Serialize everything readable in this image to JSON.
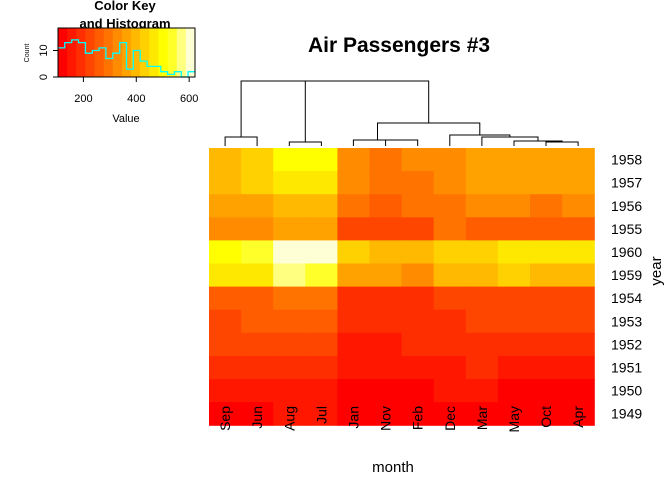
{
  "title": "Air Passengers #3",
  "key": {
    "title_line1": "Color Key",
    "title_line2": "and Histogram",
    "xlabel": "Value",
    "ylabel": "Count",
    "x_ticks": [
      "200",
      "400",
      "600"
    ],
    "y_ticks": [
      "0",
      "10"
    ],
    "value_range": [
      104,
      622
    ],
    "count_range": [
      0,
      18.5
    ],
    "palette": [
      "#FF0000",
      "#FF1700",
      "#FF2E00",
      "#FF4600",
      "#FF5D00",
      "#FF7400",
      "#FF8B00",
      "#FFA200",
      "#FFB900",
      "#FFD100",
      "#FFE800",
      "#FFFF00",
      "#FFFF2A",
      "#FFFF80",
      "#FFFFD5"
    ],
    "histogram_color": "#00FFFF"
  },
  "chart_data": {
    "type": "heatmap",
    "title": "Air Passengers #3",
    "xlabel": "month",
    "ylabel": "year",
    "columns": [
      "Sep",
      "Jun",
      "Aug",
      "Jul",
      "Jan",
      "Nov",
      "Feb",
      "Dec",
      "Mar",
      "May",
      "Oct",
      "Apr"
    ],
    "rows": [
      "1958",
      "1957",
      "1956",
      "1955",
      "1960",
      "1959",
      "1954",
      "1953",
      "1952",
      "1951",
      "1950",
      "1949"
    ],
    "row_dendrogram": false,
    "column_dendrogram": true,
    "values": [
      [
        404,
        422,
        505,
        491,
        340,
        310,
        318,
        337,
        362,
        363,
        359,
        348
      ],
      [
        404,
        422,
        467,
        465,
        315,
        305,
        301,
        336,
        356,
        355,
        347,
        348
      ],
      [
        355,
        374,
        405,
        413,
        284,
        271,
        277,
        306,
        317,
        318,
        306,
        313
      ],
      [
        312,
        315,
        347,
        364,
        242,
        237,
        233,
        278,
        267,
        270,
        274,
        269
      ],
      [
        508,
        535,
        606,
        622,
        417,
        390,
        391,
        432,
        419,
        472,
        461,
        461
      ],
      [
        463,
        472,
        559,
        548,
        360,
        362,
        342,
        405,
        406,
        420,
        407,
        396
      ],
      [
        259,
        264,
        293,
        302,
        204,
        203,
        188,
        229,
        235,
        234,
        229,
        227
      ],
      [
        237,
        243,
        272,
        264,
        196,
        180,
        196,
        201,
        236,
        229,
        211,
        235
      ],
      [
        209,
        218,
        242,
        230,
        171,
        172,
        180,
        194,
        193,
        183,
        191,
        181
      ],
      [
        184,
        178,
        199,
        199,
        145,
        146,
        150,
        166,
        178,
        172,
        162,
        163
      ],
      [
        158,
        149,
        170,
        170,
        115,
        114,
        126,
        140,
        141,
        125,
        133,
        135
      ],
      [
        136,
        135,
        148,
        148,
        112,
        104,
        118,
        118,
        132,
        121,
        119,
        129
      ]
    ]
  }
}
